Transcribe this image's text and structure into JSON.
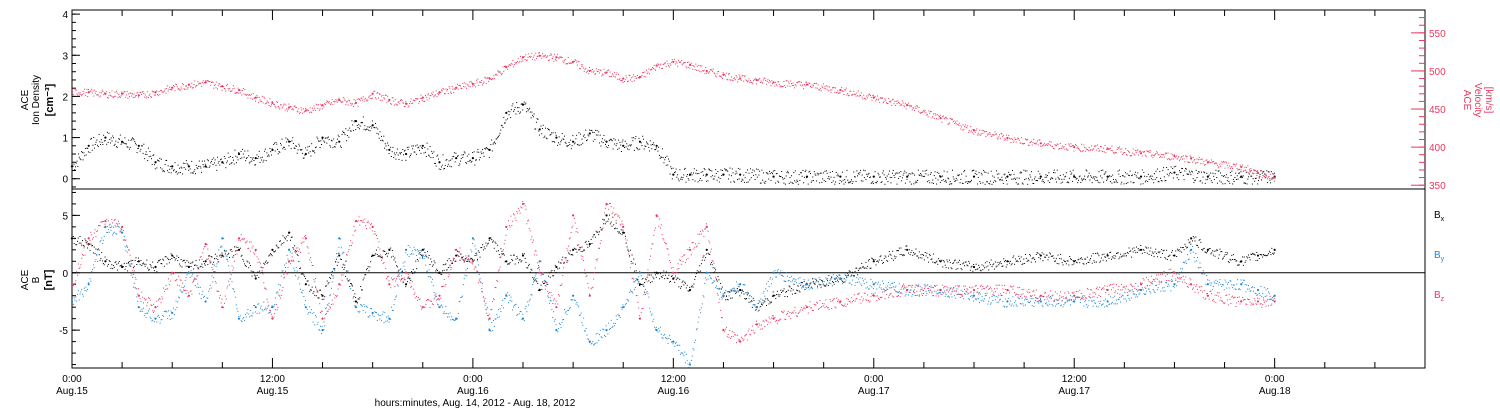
{
  "colors": {
    "black": "#000000",
    "pink": "#e8385f",
    "blue": "#1a86d6"
  },
  "xaxis": {
    "ticks": [
      {
        "time": "0:00",
        "date": "Aug.15",
        "hours": 0
      },
      {
        "time": "12:00",
        "date": "Aug.15",
        "hours": 12
      },
      {
        "time": "0:00",
        "date": "Aug.16",
        "hours": 24
      },
      {
        "time": "12:00",
        "date": "Aug.16",
        "hours": 36
      },
      {
        "time": "0:00",
        "date": "Aug.17",
        "hours": 48
      },
      {
        "time": "12:00",
        "date": "Aug.17",
        "hours": 60
      },
      {
        "time": "0:00",
        "date": "Aug.18",
        "hours": 72
      }
    ],
    "label": "hours:minutes, Aug. 14, 2012 - Aug. 18, 2012",
    "range_hours": [
      0,
      81
    ]
  },
  "chart_data": [
    {
      "type": "scatter",
      "panel": "top",
      "left_axis": {
        "label_line1": "ACE",
        "label_line2": "Ion Density",
        "unit": "[cm⁻³]",
        "range": [
          -0.25,
          4.1
        ],
        "ticks": [
          0,
          1,
          2,
          3,
          4
        ]
      },
      "right_axis": {
        "label_line1": "ACE",
        "label_line2": "Velocity",
        "unit": "[km/s]",
        "range": [
          345,
          580
        ],
        "ticks": [
          350,
          400,
          450,
          500,
          550
        ]
      },
      "series": [
        {
          "axis": "left",
          "color": "black",
          "x": [
            0,
            1,
            2,
            3,
            4,
            5,
            6,
            7,
            8,
            9,
            10,
            11,
            12,
            13,
            14,
            15,
            16,
            17,
            18,
            19,
            20,
            21,
            22,
            23,
            24,
            25,
            26,
            27,
            28,
            29,
            30,
            31,
            32,
            33,
            34,
            35,
            36,
            37,
            38,
            39,
            40,
            42,
            44,
            46,
            48,
            50,
            52,
            54,
            56,
            58,
            60,
            62,
            64,
            66,
            68,
            70,
            72
          ],
          "y": [
            0.3,
            0.8,
            1.0,
            0.9,
            0.8,
            0.4,
            0.3,
            0.3,
            0.3,
            0.4,
            0.6,
            0.5,
            0.7,
            0.9,
            0.6,
            1.0,
            0.9,
            1.4,
            1.3,
            0.7,
            0.6,
            0.8,
            0.4,
            0.5,
            0.5,
            0.7,
            1.6,
            1.8,
            1.2,
            1.0,
            0.9,
            1.1,
            0.9,
            0.8,
            0.9,
            0.8,
            0.1,
            0.1,
            0.1,
            0.1,
            0.1,
            0.05,
            0.05,
            0.05,
            0.05,
            0.05,
            0.05,
            0.05,
            0.05,
            0.05,
            0.05,
            0.05,
            0.05,
            0.15,
            0.05,
            0.05,
            0.05
          ]
        },
        {
          "axis": "right",
          "color": "pink",
          "x": [
            0,
            1,
            2,
            3,
            4,
            5,
            6,
            7,
            8,
            9,
            10,
            11,
            12,
            13,
            14,
            15,
            16,
            17,
            18,
            19,
            20,
            21,
            22,
            23,
            24,
            25,
            26,
            27,
            28,
            29,
            30,
            31,
            32,
            33,
            34,
            35,
            36,
            37,
            38,
            39,
            40,
            41,
            42,
            44,
            46,
            48,
            50,
            52,
            54,
            56,
            58,
            60,
            62,
            64,
            66,
            67,
            68,
            70,
            71,
            72
          ],
          "y": [
            473,
            472,
            470,
            470,
            468,
            472,
            478,
            482,
            485,
            480,
            475,
            465,
            458,
            452,
            448,
            455,
            462,
            458,
            470,
            462,
            457,
            465,
            472,
            478,
            483,
            490,
            505,
            518,
            520,
            518,
            512,
            500,
            498,
            490,
            492,
            507,
            512,
            508,
            500,
            495,
            490,
            488,
            485,
            482,
            475,
            465,
            455,
            438,
            422,
            412,
            405,
            400,
            398,
            392,
            388,
            385,
            380,
            374,
            366,
            360
          ]
        }
      ]
    },
    {
      "type": "scatter",
      "panel": "bottom",
      "left_axis": {
        "label_line1": "ACE",
        "label_line2": "B",
        "unit": "[nT]",
        "range": [
          -8.3,
          7.3
        ],
        "ticks": [
          -5,
          0,
          5
        ]
      },
      "series": [
        {
          "name": "Bx",
          "color": "black",
          "x": [
            0,
            1,
            2,
            3,
            4,
            5,
            6,
            7,
            8,
            9,
            10,
            11,
            12,
            13,
            14,
            15,
            16,
            17,
            18,
            19,
            20,
            21,
            22,
            23,
            24,
            25,
            26,
            27,
            28,
            29,
            30,
            31,
            32,
            33,
            34,
            35,
            36,
            37,
            38,
            39,
            40,
            41,
            42,
            44,
            46,
            48,
            50,
            52,
            54,
            56,
            58,
            60,
            62,
            64,
            66,
            67,
            68,
            70,
            71,
            72
          ],
          "y": [
            3,
            2.5,
            1,
            0.5,
            1,
            0.5,
            1.5,
            0.5,
            1,
            1.5,
            2,
            -0.5,
            2,
            3.5,
            -1,
            -2,
            1.5,
            -2.5,
            1.5,
            2,
            -1,
            2,
            0,
            1.5,
            1,
            3,
            1,
            1.5,
            -1.5,
            0.5,
            2,
            2.5,
            5,
            3.5,
            -1,
            0,
            -0.5,
            -1.5,
            2,
            -2,
            -1.5,
            -3,
            -2,
            -1,
            -0.5,
            1,
            2,
            1,
            0.5,
            1,
            1.5,
            1,
            1.5,
            2,
            1.5,
            3,
            2,
            1,
            1.5,
            2
          ]
        },
        {
          "name": "By",
          "color": "blue",
          "x": [
            0,
            1,
            2,
            3,
            4,
            5,
            6,
            7,
            8,
            9,
            10,
            11,
            12,
            13,
            14,
            15,
            16,
            17,
            18,
            19,
            20,
            21,
            22,
            23,
            24,
            25,
            26,
            27,
            28,
            29,
            30,
            31,
            32,
            33,
            34,
            35,
            36,
            37,
            38,
            39,
            40,
            41,
            42,
            44,
            46,
            48,
            50,
            52,
            54,
            56,
            58,
            60,
            62,
            64,
            66,
            67,
            68,
            70,
            71,
            72
          ],
          "y": [
            -2.5,
            -1,
            4,
            3.5,
            -3,
            -4,
            -3.5,
            0,
            -2.5,
            3,
            -4,
            -3,
            -3,
            2,
            -3,
            -5,
            3,
            -3,
            -3.5,
            -4,
            2,
            1.5,
            -3,
            -4,
            3,
            -5,
            -2,
            -4,
            1,
            -5,
            -2,
            -6,
            -5,
            -3,
            0,
            -5,
            -6,
            -8,
            0,
            -2,
            -1,
            -3,
            0,
            -1,
            -0.5,
            -1,
            -1.5,
            -1.5,
            -2,
            -2.5,
            -2.5,
            -2.5,
            -2.5,
            -1.5,
            -1,
            2,
            -1,
            -1,
            -1.5,
            -2
          ]
        },
        {
          "name": "Bz",
          "color": "pink",
          "x": [
            0,
            1,
            2,
            3,
            4,
            5,
            6,
            7,
            8,
            9,
            10,
            11,
            12,
            13,
            14,
            15,
            16,
            17,
            18,
            19,
            20,
            21,
            22,
            23,
            24,
            25,
            26,
            27,
            28,
            29,
            30,
            31,
            32,
            33,
            34,
            35,
            36,
            37,
            38,
            39,
            40,
            41,
            42,
            44,
            46,
            48,
            50,
            52,
            54,
            56,
            58,
            60,
            62,
            64,
            66,
            67,
            68,
            70,
            71,
            72
          ],
          "y": [
            -1,
            3,
            4.5,
            4,
            -2,
            -3,
            0,
            -2,
            2.5,
            -3,
            3,
            2,
            -4,
            1,
            3,
            -4,
            -1,
            4.5,
            4,
            -1,
            0,
            -3,
            -2,
            2,
            1,
            -4,
            4,
            6,
            0,
            -3,
            5,
            -2,
            6,
            4,
            -4,
            5,
            0,
            2,
            4,
            -5,
            -6,
            -4.5,
            -4,
            -3,
            -2.5,
            -2,
            -1.5,
            -1.5,
            -1.5,
            -1.5,
            -2,
            -2,
            -1.5,
            -1,
            0,
            -1,
            -2,
            -2.5,
            -2.5,
            -2.5
          ]
        }
      ]
    }
  ]
}
